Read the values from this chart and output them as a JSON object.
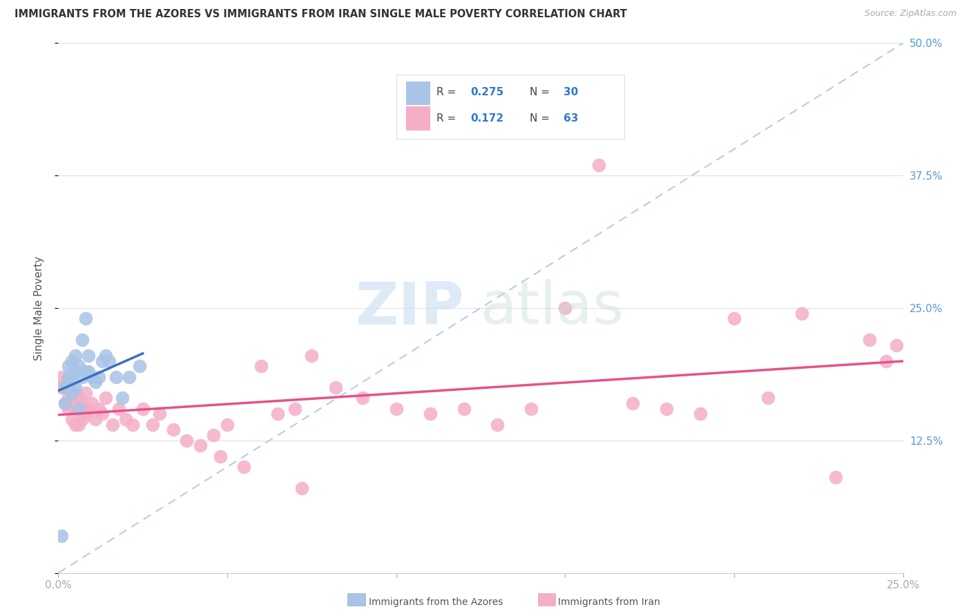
{
  "title": "IMMIGRANTS FROM THE AZORES VS IMMIGRANTS FROM IRAN SINGLE MALE POVERTY CORRELATION CHART",
  "source": "Source: ZipAtlas.com",
  "ylabel": "Single Male Poverty",
  "xlim": [
    0.0,
    0.25
  ],
  "ylim": [
    0.0,
    0.5
  ],
  "azores_color": "#a8c4e6",
  "iran_color": "#f4aec8",
  "trend_azores_color": "#3a6fc0",
  "trend_iran_color": "#e8508a",
  "dashed_line_color": "#b8cce8",
  "background_color": "#ffffff",
  "grid_color": "#e0e0e8",
  "right_tick_color": "#5599dd",
  "azores_x": [
    0.001,
    0.002,
    0.002,
    0.003,
    0.003,
    0.003,
    0.004,
    0.004,
    0.004,
    0.005,
    0.005,
    0.005,
    0.006,
    0.006,
    0.007,
    0.007,
    0.008,
    0.008,
    0.009,
    0.009,
    0.01,
    0.011,
    0.012,
    0.013,
    0.014,
    0.015,
    0.017,
    0.019,
    0.021,
    0.024
  ],
  "azores_y": [
    0.035,
    0.16,
    0.175,
    0.18,
    0.185,
    0.195,
    0.17,
    0.185,
    0.2,
    0.175,
    0.19,
    0.205,
    0.155,
    0.195,
    0.185,
    0.22,
    0.19,
    0.24,
    0.19,
    0.205,
    0.185,
    0.18,
    0.185,
    0.2,
    0.205,
    0.2,
    0.185,
    0.165,
    0.185,
    0.195
  ],
  "iran_x": [
    0.001,
    0.001,
    0.002,
    0.002,
    0.003,
    0.003,
    0.003,
    0.004,
    0.004,
    0.004,
    0.005,
    0.005,
    0.005,
    0.006,
    0.006,
    0.007,
    0.007,
    0.008,
    0.008,
    0.009,
    0.01,
    0.011,
    0.012,
    0.013,
    0.014,
    0.016,
    0.018,
    0.02,
    0.022,
    0.025,
    0.028,
    0.03,
    0.034,
    0.038,
    0.042,
    0.046,
    0.05,
    0.06,
    0.065,
    0.07,
    0.075,
    0.082,
    0.09,
    0.1,
    0.11,
    0.12,
    0.13,
    0.14,
    0.15,
    0.16,
    0.17,
    0.18,
    0.19,
    0.2,
    0.21,
    0.22,
    0.23,
    0.24,
    0.245,
    0.248,
    0.048,
    0.055,
    0.072
  ],
  "iran_y": [
    0.175,
    0.185,
    0.16,
    0.175,
    0.155,
    0.165,
    0.18,
    0.145,
    0.165,
    0.175,
    0.14,
    0.155,
    0.17,
    0.14,
    0.165,
    0.145,
    0.16,
    0.15,
    0.17,
    0.155,
    0.16,
    0.145,
    0.155,
    0.15,
    0.165,
    0.14,
    0.155,
    0.145,
    0.14,
    0.155,
    0.14,
    0.15,
    0.135,
    0.125,
    0.12,
    0.13,
    0.14,
    0.195,
    0.15,
    0.155,
    0.205,
    0.175,
    0.165,
    0.155,
    0.15,
    0.155,
    0.14,
    0.155,
    0.25,
    0.385,
    0.16,
    0.155,
    0.15,
    0.24,
    0.165,
    0.245,
    0.09,
    0.22,
    0.2,
    0.215,
    0.11,
    0.1,
    0.08
  ]
}
